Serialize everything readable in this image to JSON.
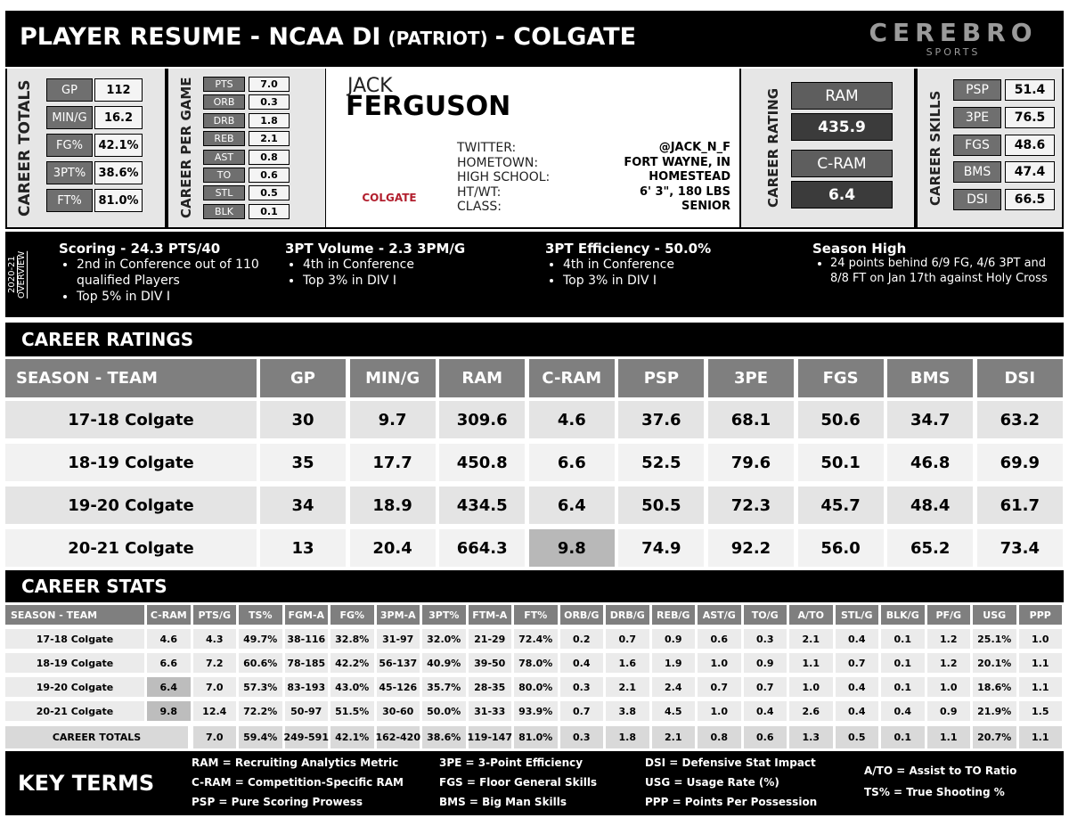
{
  "header": {
    "title_main": "PLAYER RESUME - NCAA DI",
    "title_conf": "(PATRIOT)",
    "title_team": "- COLGATE",
    "logo": "CEREBRO",
    "logo_sub": "SPORTS"
  },
  "career_totals": {
    "label": "CAREER TOTALS",
    "rows": [
      [
        "GP",
        "112"
      ],
      [
        "MIN/G",
        "16.2"
      ],
      [
        "FG%",
        "42.1%"
      ],
      [
        "3PT%",
        "38.6%"
      ],
      [
        "FT%",
        "81.0%"
      ]
    ]
  },
  "career_per_game": {
    "label": "CAREER PER GAME",
    "rows": [
      [
        "PTS",
        "7.0"
      ],
      [
        "ORB",
        "0.3"
      ],
      [
        "DRB",
        "1.8"
      ],
      [
        "REB",
        "2.1"
      ],
      [
        "AST",
        "0.8"
      ],
      [
        "TO",
        "0.6"
      ],
      [
        "STL",
        "0.5"
      ],
      [
        "BLK",
        "0.1"
      ]
    ]
  },
  "player": {
    "first": "JACK",
    "last": "FERGUSON",
    "jersey": "COLGATE",
    "info": [
      [
        "TWITTER:",
        "@JACK_N_F"
      ],
      [
        "HOMETOWN:",
        "FORT WAYNE, IN"
      ],
      [
        "HIGH SCHOOL:",
        "HOMESTEAD"
      ],
      [
        "HT/WT:",
        "6' 3\", 180 LBS"
      ],
      [
        "CLASS:",
        "SENIOR"
      ]
    ]
  },
  "career_rating": {
    "label": "CAREER RATING",
    "items": [
      [
        "RAM",
        "435.9"
      ],
      [
        "C-RAM",
        "6.4"
      ]
    ]
  },
  "career_skills": {
    "label": "CAREER SKILLS",
    "rows": [
      [
        "PSP",
        "51.4"
      ],
      [
        "3PE",
        "76.5"
      ],
      [
        "FGS",
        "48.6"
      ],
      [
        "BMS",
        "47.4"
      ],
      [
        "DSI",
        "66.5"
      ]
    ]
  },
  "overview": {
    "label": "2020-21 OVERVIEW",
    "blocks": [
      {
        "title": "Scoring - 24.3 PTS/40",
        "bullets": [
          "2nd in Conference out of 110 qualified Players",
          "Top 5% in DIV I"
        ]
      },
      {
        "title": "3PT Volume - 2.3 3PM/G",
        "bullets": [
          "4th in Conference",
          "Top 3% in DIV I"
        ]
      },
      {
        "title": "3PT Efficiency - 50.0%",
        "bullets": [
          "4th in Conference",
          "Top 3% in DIV I"
        ]
      },
      {
        "title": "Season High",
        "bullets": [
          "24 points behind 6/9 FG, 4/6 3PT and 8/8 FT on Jan 17th against Holy Cross"
        ]
      }
    ]
  },
  "career_ratings": {
    "title": "CAREER RATINGS",
    "columns": [
      "SEASON - TEAM",
      "GP",
      "MIN/G",
      "RAM",
      "C-RAM",
      "PSP",
      "3PE",
      "FGS",
      "BMS",
      "DSI"
    ],
    "rows": [
      [
        "17-18 Colgate",
        "30",
        "9.7",
        "309.6",
        "4.6",
        "37.6",
        "68.1",
        "50.6",
        "34.7",
        "63.2"
      ],
      [
        "18-19 Colgate",
        "35",
        "17.7",
        "450.8",
        "6.6",
        "52.5",
        "79.6",
        "50.1",
        "46.8",
        "69.9"
      ],
      [
        "19-20 Colgate",
        "34",
        "18.9",
        "434.5",
        "6.4",
        "50.5",
        "72.3",
        "45.7",
        "48.4",
        "61.7"
      ],
      [
        "20-21 Colgate",
        "13",
        "20.4",
        "664.3",
        "9.8",
        "74.9",
        "92.2",
        "56.0",
        "65.2",
        "73.4"
      ]
    ]
  },
  "career_stats": {
    "title": "CAREER STATS",
    "columns": [
      "SEASON - TEAM",
      "C-RAM",
      "PTS/G",
      "TS%",
      "FGM-A",
      "FG%",
      "3PM-A",
      "3PT%",
      "FTM-A",
      "FT%",
      "ORB/G",
      "DRB/G",
      "REB/G",
      "AST/G",
      "TO/G",
      "A/TO",
      "STL/G",
      "BLK/G",
      "PF/G",
      "USG",
      "PPP"
    ],
    "rows": [
      [
        "17-18 Colgate",
        "4.6",
        "4.3",
        "49.7%",
        "38-116",
        "32.8%",
        "31-97",
        "32.0%",
        "21-29",
        "72.4%",
        "0.2",
        "0.7",
        "0.9",
        "0.6",
        "0.3",
        "2.1",
        "0.4",
        "0.1",
        "1.2",
        "25.1%",
        "1.0"
      ],
      [
        "18-19 Colgate",
        "6.6",
        "7.2",
        "60.6%",
        "78-185",
        "42.2%",
        "56-137",
        "40.9%",
        "39-50",
        "78.0%",
        "0.4",
        "1.6",
        "1.9",
        "1.0",
        "0.9",
        "1.1",
        "0.7",
        "0.1",
        "1.2",
        "20.1%",
        "1.1"
      ],
      [
        "19-20 Colgate",
        "6.4",
        "7.0",
        "57.3%",
        "83-193",
        "43.0%",
        "45-126",
        "35.7%",
        "28-35",
        "80.0%",
        "0.3",
        "2.1",
        "2.4",
        "0.7",
        "0.7",
        "1.0",
        "0.4",
        "0.1",
        "1.0",
        "18.6%",
        "1.1"
      ],
      [
        "20-21 Colgate",
        "9.8",
        "12.4",
        "72.2%",
        "50-97",
        "51.5%",
        "30-60",
        "50.0%",
        "31-33",
        "93.9%",
        "0.7",
        "3.8",
        "4.5",
        "1.0",
        "0.4",
        "2.6",
        "0.4",
        "0.4",
        "0.9",
        "21.9%",
        "1.5"
      ]
    ],
    "totals": {
      "label": "CAREER TOTALS",
      "values": [
        "7.0",
        "59.4%",
        "249-591",
        "42.1%",
        "162-420",
        "38.6%",
        "119-147",
        "81.0%",
        "0.3",
        "1.8",
        "2.1",
        "0.8",
        "0.6",
        "1.3",
        "0.5",
        "0.1",
        "1.1",
        "20.7%",
        "1.1"
      ]
    }
  },
  "key_terms": {
    "title": "KEY TERMS",
    "columns": [
      [
        "RAM = Recruiting Analytics Metric",
        "C-RAM = Competition-Specific RAM",
        "PSP = Pure Scoring Prowess"
      ],
      [
        "3PE = 3-Point Efficiency",
        "FGS = Floor General Skills",
        "BMS = Big Man Skills"
      ],
      [
        "DSI = Defensive Stat Impact",
        "USG = Usage Rate (%)",
        "PPP = Points Per Possession"
      ],
      [
        "A/TO = Assist to TO Ratio",
        "TS% = True Shooting %"
      ]
    ]
  }
}
